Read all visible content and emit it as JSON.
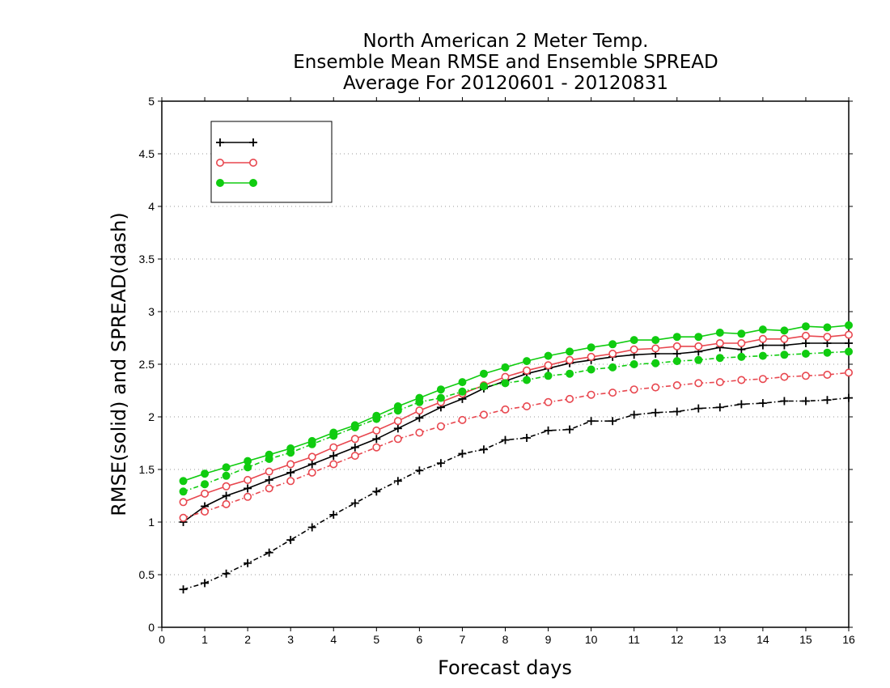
{
  "chart_data": {
    "type": "line",
    "title": [
      "North American 2 Meter Temp.",
      "Ensemble Mean RMSE and Ensemble SPREAD",
      "Average For 20120601 - 20120831"
    ],
    "xlabel": "Forecast days",
    "ylabel": "RMSE(solid) and SPREAD(dash)",
    "xlim": [
      0,
      16
    ],
    "ylim": [
      0,
      5
    ],
    "xticks": [
      0,
      1,
      2,
      3,
      4,
      5,
      6,
      7,
      8,
      9,
      10,
      11,
      12,
      13,
      14,
      15,
      16
    ],
    "yticks": [
      0,
      0.5,
      1,
      1.5,
      2,
      2.5,
      3,
      3.5,
      4,
      4.5,
      5
    ],
    "ytick_labels": [
      "0",
      "0.5",
      "1",
      "1.5",
      "2",
      "2.5",
      "3",
      "3.5",
      "4",
      "4.5",
      "5"
    ],
    "grid": "horizontal dotted",
    "legend_position": "top-left",
    "x": [
      0.5,
      1,
      1.5,
      2,
      2.5,
      3,
      3.5,
      4,
      4.5,
      5,
      5.5,
      6,
      6.5,
      7,
      7.5,
      8,
      8.5,
      9,
      9.5,
      10,
      10.5,
      11,
      11.5,
      12,
      12.5,
      13,
      13.5,
      14,
      14.5,
      15,
      15.5,
      16
    ],
    "series": [
      {
        "name": "",
        "color": "#000000",
        "marker": "plus",
        "rmse": [
          1.0,
          1.15,
          1.25,
          1.32,
          1.4,
          1.47,
          1.55,
          1.63,
          1.71,
          1.79,
          1.89,
          1.99,
          2.09,
          2.17,
          2.27,
          2.34,
          2.41,
          2.46,
          2.51,
          2.54,
          2.57,
          2.59,
          2.6,
          2.6,
          2.62,
          2.66,
          2.64,
          2.68,
          2.68,
          2.7,
          2.7,
          2.7
        ],
        "spread": [
          0.36,
          0.42,
          0.51,
          0.61,
          0.71,
          0.83,
          0.95,
          1.07,
          1.18,
          1.29,
          1.39,
          1.49,
          1.56,
          1.65,
          1.69,
          1.78,
          1.8,
          1.87,
          1.88,
          1.96,
          1.96,
          2.02,
          2.04,
          2.05,
          2.08,
          2.09,
          2.12,
          2.13,
          2.15,
          2.15,
          2.16,
          2.18
        ]
      },
      {
        "name": "",
        "color": "#e8474f",
        "marker": "open-circle",
        "rmse": [
          1.19,
          1.27,
          1.34,
          1.4,
          1.48,
          1.55,
          1.62,
          1.71,
          1.79,
          1.87,
          1.96,
          2.06,
          2.14,
          2.22,
          2.3,
          2.38,
          2.44,
          2.49,
          2.54,
          2.57,
          2.6,
          2.64,
          2.65,
          2.67,
          2.67,
          2.7,
          2.7,
          2.74,
          2.74,
          2.77,
          2.76,
          2.78
        ],
        "spread": [
          1.04,
          1.1,
          1.17,
          1.24,
          1.32,
          1.39,
          1.47,
          1.55,
          1.63,
          1.71,
          1.79,
          1.85,
          1.91,
          1.97,
          2.02,
          2.07,
          2.1,
          2.14,
          2.17,
          2.21,
          2.23,
          2.26,
          2.28,
          2.3,
          2.32,
          2.33,
          2.35,
          2.36,
          2.38,
          2.39,
          2.4,
          2.42
        ]
      },
      {
        "name": "",
        "color": "#10cc10",
        "marker": "filled-circle",
        "rmse": [
          1.39,
          1.46,
          1.52,
          1.58,
          1.64,
          1.7,
          1.77,
          1.85,
          1.92,
          2.01,
          2.1,
          2.18,
          2.26,
          2.33,
          2.41,
          2.47,
          2.53,
          2.58,
          2.62,
          2.66,
          2.69,
          2.73,
          2.73,
          2.76,
          2.76,
          2.8,
          2.79,
          2.83,
          2.82,
          2.86,
          2.85,
          2.87
        ],
        "spread": [
          1.29,
          1.36,
          1.44,
          1.52,
          1.6,
          1.66,
          1.74,
          1.82,
          1.9,
          1.98,
          2.06,
          2.14,
          2.18,
          2.24,
          2.29,
          2.32,
          2.35,
          2.39,
          2.41,
          2.45,
          2.47,
          2.5,
          2.51,
          2.53,
          2.54,
          2.56,
          2.57,
          2.58,
          2.59,
          2.6,
          2.61,
          2.62
        ]
      }
    ]
  }
}
